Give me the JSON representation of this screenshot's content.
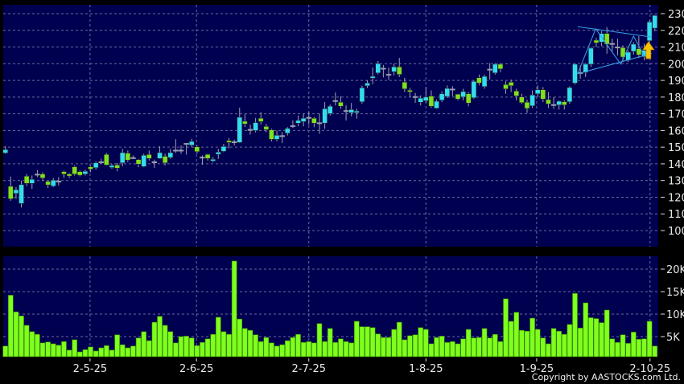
{
  "chart_data": [
    {
      "type": "candlestick",
      "panel": "price",
      "ylim": [
        94,
        232
      ],
      "yticks": [
        100,
        110,
        120,
        130,
        140,
        150,
        160,
        170,
        180,
        190,
        200,
        210,
        220,
        230
      ],
      "grid": true,
      "axis_side": "right",
      "colors": {
        "background": "#000050",
        "up": "#33dcf0",
        "down": "#7fe022",
        "wick": "#a0a0b0",
        "grid": "#6a6aa0",
        "pattern": "#3aa0e8",
        "arrow": "#f5c400"
      },
      "candles_ohlc": [
        [
          146.5,
          150.5,
          146,
          148.5
        ],
        [
          126.5,
          132.3,
          117.8,
          119
        ],
        [
          122.3,
          126,
          119,
          124.5
        ],
        [
          116.2,
          129.9,
          113.8,
          127.5
        ],
        [
          132.6,
          133.9,
          126.7,
          128.3
        ],
        [
          128.3,
          133,
          125,
          130.7
        ],
        [
          133.9,
          136.3,
          132,
          133.9
        ],
        [
          133.9,
          135,
          130,
          131.5
        ],
        [
          129.4,
          130,
          125.5,
          127.4
        ],
        [
          126.7,
          131.5,
          126,
          130.2
        ],
        [
          129.7,
          132,
          127,
          129.7
        ],
        [
          135.3,
          136,
          131.5,
          133.9
        ],
        [
          133.9,
          134.5,
          131.5,
          132.7
        ],
        [
          138.2,
          139,
          133,
          133.9
        ],
        [
          135.3,
          136,
          132.5,
          133.2
        ],
        [
          133.9,
          136.5,
          133,
          135.5
        ],
        [
          138.2,
          139,
          135,
          136.8
        ],
        [
          137.7,
          141.5,
          136.5,
          140.6
        ],
        [
          141.3,
          143,
          140,
          141.3
        ],
        [
          145.6,
          146.5,
          139,
          139.3
        ],
        [
          137.8,
          140,
          137,
          139
        ],
        [
          139.3,
          140.5,
          135.5,
          137.4
        ],
        [
          140.6,
          149,
          138.5,
          146.7
        ],
        [
          146.4,
          148,
          141,
          142.2
        ],
        [
          143.8,
          145,
          143,
          143.8
        ],
        [
          142.5,
          143,
          138,
          139.8
        ],
        [
          138.4,
          146,
          138,
          145.1
        ],
        [
          145.6,
          148,
          142,
          143.2
        ],
        [
          141.3,
          142.5,
          137.5,
          141.3
        ],
        [
          143.2,
          150.5,
          143,
          146.7
        ],
        [
          144.5,
          146,
          139,
          140.6
        ],
        [
          143.8,
          149,
          143,
          146.7
        ],
        [
          148.3,
          154.8,
          146.5,
          148.3
        ],
        [
          148.3,
          151,
          146,
          148.3
        ],
        [
          152.3,
          152.5,
          145.5,
          152.3
        ],
        [
          151.2,
          155,
          150,
          153.4
        ],
        [
          150.2,
          151,
          146,
          147.3
        ],
        [
          144.1,
          145,
          139.5,
          144.1
        ],
        [
          145.6,
          146,
          142,
          143.2
        ],
        [
          141.7,
          144,
          141,
          142.7
        ],
        [
          145.7,
          149,
          143,
          147
        ],
        [
          147.5,
          152,
          147,
          150.4
        ],
        [
          153.9,
          155.5,
          149.3,
          152.8
        ],
        [
          153.3,
          154.5,
          151,
          153.3
        ],
        [
          152.8,
          173.7,
          152.5,
          167.9
        ],
        [
          165.5,
          169.8,
          162,
          163.9
        ],
        [
          160.7,
          163.5,
          157.5,
          160.7
        ],
        [
          160,
          167.5,
          158.8,
          164.7
        ],
        [
          167.3,
          171,
          163.5,
          165.3
        ],
        [
          162.4,
          164,
          159,
          160.5
        ],
        [
          160.3,
          161,
          153.5,
          154.7
        ],
        [
          154.7,
          160,
          153.5,
          157.1
        ],
        [
          157,
          159,
          152.5,
          157
        ],
        [
          158.4,
          162,
          157,
          161.2
        ],
        [
          162.9,
          166,
          161.5,
          162.9
        ],
        [
          164.4,
          169,
          162.5,
          166
        ],
        [
          165.3,
          170,
          162.5,
          167.3
        ],
        [
          167.9,
          171,
          163.5,
          167.9
        ],
        [
          167.3,
          168,
          162,
          164.4
        ],
        [
          164.7,
          170,
          158,
          164.7
        ],
        [
          164.4,
          177,
          161,
          173
        ],
        [
          170.1,
          175.5,
          169,
          174.5
        ],
        [
          178,
          182.8,
          175,
          178
        ],
        [
          176.9,
          180.5,
          173,
          174.5
        ],
        [
          172,
          175,
          166,
          172
        ],
        [
          170.6,
          176.5,
          168.5,
          172.5
        ],
        [
          170.6,
          173,
          167,
          171.6
        ],
        [
          177.2,
          186.8,
          176,
          185.5
        ],
        [
          186.8,
          190,
          185.5,
          188.4
        ],
        [
          191.3,
          197.7,
          187.7,
          192.4
        ],
        [
          194.5,
          201.6,
          193.6,
          200.1
        ],
        [
          197.4,
          199.3,
          191.8,
          197.4
        ],
        [
          193.7,
          197.7,
          190.3,
          193.7
        ],
        [
          195.2,
          200,
          193,
          198.1
        ],
        [
          198.1,
          203.5,
          192,
          193.6
        ],
        [
          188.9,
          191.5,
          183,
          184.9
        ],
        [
          184.1,
          185.5,
          180,
          183.1
        ],
        [
          180.4,
          182.5,
          176.5,
          180.4
        ],
        [
          176.9,
          181,
          175,
          179.3
        ],
        [
          177.8,
          186,
          176.5,
          180
        ],
        [
          180.6,
          184,
          173.5,
          174.5
        ],
        [
          173.3,
          178.5,
          173,
          177.5
        ],
        [
          178.2,
          183.5,
          177,
          182
        ],
        [
          180.4,
          187,
          179.5,
          185.2
        ],
        [
          184.9,
          186.5,
          180.5,
          184.9
        ],
        [
          181.7,
          182,
          178,
          178.8
        ],
        [
          180.1,
          185,
          178,
          183.3
        ],
        [
          182,
          183,
          174.5,
          176.4
        ],
        [
          179.6,
          190,
          179,
          189.4
        ],
        [
          191.6,
          193.5,
          187,
          188.4
        ],
        [
          186.3,
          193.5,
          185,
          192.4
        ],
        [
          196.8,
          200.4,
          190.5,
          196.8
        ],
        [
          194.5,
          200.4,
          193.5,
          199.7
        ],
        [
          199.7,
          200.5,
          195,
          196.9
        ],
        [
          187.5,
          189.5,
          182,
          184.9
        ],
        [
          188.9,
          190.5,
          183,
          186.8
        ],
        [
          183.6,
          185,
          178,
          180.7
        ],
        [
          180.1,
          182,
          176,
          176.7
        ],
        [
          176.9,
          178.5,
          170.5,
          173.2
        ],
        [
          174.8,
          184,
          173.5,
          181.2
        ],
        [
          182,
          187,
          180,
          184.4
        ],
        [
          184.4,
          186,
          177,
          178.8
        ],
        [
          178.5,
          183,
          173.5,
          175.9
        ],
        [
          175.6,
          180,
          173,
          175.6
        ],
        [
          175.3,
          178,
          172.5,
          177.5
        ],
        [
          177.2,
          178,
          172.5,
          175.3
        ],
        [
          177.2,
          186.5,
          176,
          185.7
        ],
        [
          188.4,
          200.5,
          187.5,
          199.7
        ],
        [
          194.8,
          199,
          191,
          194.8
        ],
        [
          194.8,
          200.5,
          192,
          199.7
        ],
        [
          199.7,
          210,
          198,
          209.3
        ],
        [
          214.1,
          215.5,
          210,
          212.5
        ],
        [
          213,
          219.6,
          210.5,
          218.1
        ],
        [
          218.1,
          222,
          206,
          211.7
        ],
        [
          212.2,
          215,
          207.5,
          212.2
        ],
        [
          210.1,
          215,
          205,
          210.1
        ],
        [
          209.6,
          211,
          201,
          204
        ],
        [
          202.1,
          208,
          201,
          206.9
        ],
        [
          207.4,
          213,
          205.5,
          211.7
        ],
        [
          209,
          216.5,
          203.5,
          205.3
        ],
        [
          204.2,
          212,
          202,
          208
        ],
        [
          213.8,
          226,
          212.5,
          225
        ],
        [
          221.3,
          229.3,
          219.5,
          228.9
        ]
      ],
      "pattern_lines": [
        {
          "from": [
            107.5,
            222.2
          ],
          "to": [
            121.4,
            216
          ]
        },
        {
          "from": [
            107.5,
            194
          ],
          "to": [
            121.4,
            206.1
          ]
        },
        {
          "points": [
            [
              107.5,
              194
            ],
            [
              110.9,
              220.9
            ],
            [
              115.6,
              199.7
            ],
            [
              118,
              216.5
            ],
            [
              119.9,
              205.3
            ]
          ]
        }
      ],
      "signal_arrow": {
        "type": "up",
        "index": 120.8,
        "price_from": 203,
        "price_to": 213.2
      }
    },
    {
      "type": "bar",
      "panel": "volume",
      "ylim": [
        0,
        22.5
      ],
      "yticks": [
        {
          "value": 5,
          "label": "5K"
        },
        {
          "value": 10,
          "label": "10K"
        },
        {
          "value": 15,
          "label": "15K"
        },
        {
          "value": 20,
          "label": "20K"
        }
      ],
      "unit": "K",
      "grid": true,
      "colors": {
        "bar": "#7fff1e",
        "bar_edge": "#3a8a00"
      },
      "values": [
        2.9,
        14.2,
        10.5,
        9.6,
        7.5,
        6.1,
        5.5,
        3.6,
        3.8,
        3.4,
        3.1,
        3.9,
        2,
        4.3,
        1.6,
        2.1,
        2.7,
        1.8,
        2.5,
        3,
        2,
        5.4,
        3.2,
        2.5,
        2.9,
        4.7,
        6.1,
        4.1,
        8.2,
        9.5,
        7.5,
        6.1,
        3.6,
        5,
        5.1,
        4.7,
        3,
        3.7,
        4.5,
        5.5,
        9.3,
        6.1,
        5.5,
        21.8,
        8.9,
        6.8,
        6.4,
        5.4,
        3.9,
        4.8,
        3.6,
        2.9,
        3.2,
        4.1,
        4.8,
        5.5,
        3.7,
        3.9,
        3.6,
        7.9,
        3.9,
        6.8,
        3.7,
        4.5,
        3.9,
        3.6,
        8.4,
        7.2,
        7.2,
        7.0,
        5.6,
        4.8,
        4.8,
        6.6,
        8.2,
        4.3,
        5.2,
        5.4,
        7.0,
        6.6,
        3.4,
        4.8,
        5.1,
        3.7,
        3.9,
        3.4,
        4.5,
        6.6,
        4.7,
        4.8,
        6.8,
        4.7,
        5.5,
        3.9,
        13.4,
        8.4,
        10.4,
        6.4,
        6.2,
        9.1,
        6.6,
        4.7,
        3.4,
        6.8,
        6.2,
        5.5,
        7.7,
        14.6,
        6.9,
        12.5,
        9.2,
        9.0,
        8.1,
        10.9,
        4.5,
        3.7,
        5.4,
        3.5,
        6.0,
        4.4,
        4.5,
        8.4,
        2.9
      ]
    }
  ],
  "xticks": [
    {
      "label": "2-5-25",
      "index": 15.9
    },
    {
      "label": "2-6-25",
      "index": 35.9
    },
    {
      "label": "2-7-25",
      "index": 57.0
    },
    {
      "label": "1-8-25",
      "index": 79.0
    },
    {
      "label": "1-9-25",
      "index": 99.8
    },
    {
      "label": "2-10-25",
      "index": 121.1
    }
  ],
  "copyright": "Copyright by AASTOCKS.com Ltd."
}
